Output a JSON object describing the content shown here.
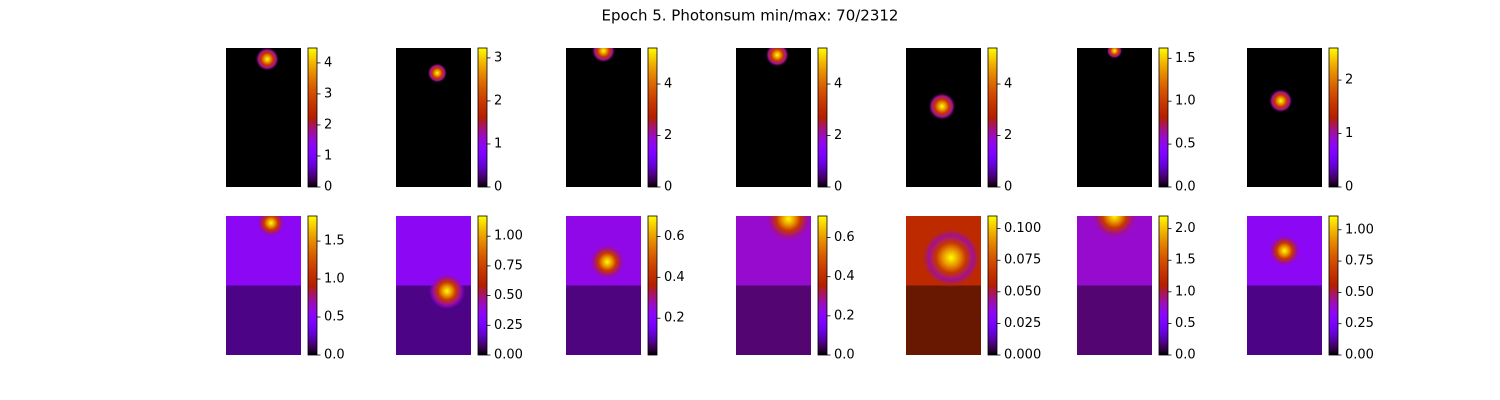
{
  "chart_data": {
    "type": "heatmap-grid",
    "title": "Epoch 5. Photonsum min/max: 70/2312",
    "panels": [
      {
        "type": "heatmap",
        "clim": [
          0,
          4.48
        ],
        "cticks": [
          0,
          1,
          2,
          3,
          4
        ]
      },
      {
        "type": "heatmap",
        "clim": [
          0,
          3.23
        ],
        "cticks": [
          0,
          1,
          2,
          3
        ]
      },
      {
        "type": "heatmap",
        "clim": [
          0,
          5.4
        ],
        "cticks": [
          0,
          2,
          4
        ]
      },
      {
        "type": "heatmap",
        "clim": [
          0,
          5.4
        ],
        "cticks": [
          0,
          2,
          4
        ]
      },
      {
        "type": "heatmap",
        "clim": [
          0,
          5.4
        ],
        "cticks": [
          0,
          2,
          4
        ]
      },
      {
        "type": "heatmap",
        "clim": [
          0,
          1.62
        ],
        "cticks": [
          {
            "value": 0,
            "label": "0.0"
          },
          0.5,
          {
            "value": 1,
            "label": "1.0"
          },
          1.5
        ]
      },
      {
        "type": "heatmap",
        "clim": [
          0,
          2.6
        ],
        "cticks": [
          0,
          1,
          2
        ]
      },
      {
        "type": "heatmap",
        "clim": [
          0,
          1.83
        ],
        "cticks": [
          {
            "value": 0,
            "label": "0.0"
          },
          0.5,
          {
            "value": 1,
            "label": "1.0"
          },
          1.5
        ]
      },
      {
        "type": "heatmap",
        "clim": [
          0,
          1.17
        ],
        "cticks": [
          {
            "value": 0,
            "label": "0.00"
          },
          0.25,
          {
            "value": 0.5,
            "label": "0.50"
          },
          0.75,
          {
            "value": 1,
            "label": "1.00"
          }
        ]
      },
      {
        "type": "heatmap",
        "clim": [
          0.02,
          0.7
        ],
        "cticks": [
          0.2,
          0.4,
          0.6
        ]
      },
      {
        "type": "heatmap",
        "clim": [
          0,
          0.71
        ],
        "cticks": [
          {
            "value": 0,
            "label": "0.0"
          },
          0.2,
          0.4,
          0.6
        ]
      },
      {
        "type": "heatmap",
        "clim": [
          0,
          0.11
        ],
        "cticks": [
          {
            "value": 0,
            "label": "0.000"
          },
          0.025,
          {
            "value": 0.05,
            "label": "0.050"
          },
          0.075,
          {
            "value": 0.1,
            "label": "0.100"
          }
        ]
      },
      {
        "type": "heatmap",
        "clim": [
          0,
          2.2
        ],
        "cticks": [
          {
            "value": 0,
            "label": "0.0"
          },
          0.5,
          {
            "value": 1,
            "label": "1.0"
          },
          1.5,
          {
            "value": 2,
            "label": "2.0"
          }
        ]
      },
      {
        "type": "heatmap",
        "clim": [
          0,
          1.11
        ],
        "cticks": [
          {
            "value": 0,
            "label": "0.00"
          },
          0.25,
          {
            "value": 0.5,
            "label": "0.50"
          },
          0.75,
          {
            "value": 1,
            "label": "1.00"
          }
        ]
      }
    ]
  }
}
